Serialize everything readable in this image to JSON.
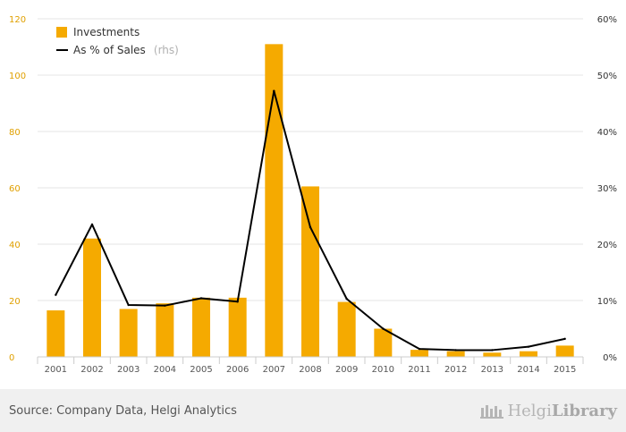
{
  "chart_data": {
    "type": "bar",
    "categories": [
      "2001",
      "2002",
      "2003",
      "2004",
      "2005",
      "2006",
      "2007",
      "2008",
      "2009",
      "2010",
      "2011",
      "2012",
      "2013",
      "2014",
      "2015"
    ],
    "series": [
      {
        "name": "Investments",
        "type": "bar",
        "axis": "left",
        "color": "#f5aa00",
        "values": [
          16.5,
          42,
          17,
          19,
          21,
          21,
          111,
          60.5,
          19.5,
          10,
          2.5,
          2,
          1.5,
          2,
          4
        ]
      },
      {
        "name": "As % of Sales",
        "type": "line",
        "axis": "right",
        "color": "#000000",
        "values": [
          11.0,
          23.5,
          9.2,
          9.1,
          10.4,
          9.8,
          47.2,
          23.0,
          10.3,
          5.0,
          1.4,
          1.2,
          1.2,
          1.8,
          3.2
        ]
      }
    ],
    "ylim_left": [
      0,
      120
    ],
    "yticks_left": [
      "0",
      "20",
      "40",
      "60",
      "80",
      "100",
      "120"
    ],
    "ylim_right": [
      0,
      60
    ],
    "yticks_right": [
      "0%",
      "10%",
      "20%",
      "30%",
      "40%",
      "50%",
      "60%"
    ],
    "grid": true,
    "legend_position": "top-left"
  },
  "legend": {
    "bar_label": "Investments",
    "line_label": "As % of Sales",
    "line_suffix": "(rhs)"
  },
  "footer": {
    "source": "Source: Company Data, Helgi Analytics",
    "logo_light": "Helgi",
    "logo_bold": "Library"
  }
}
